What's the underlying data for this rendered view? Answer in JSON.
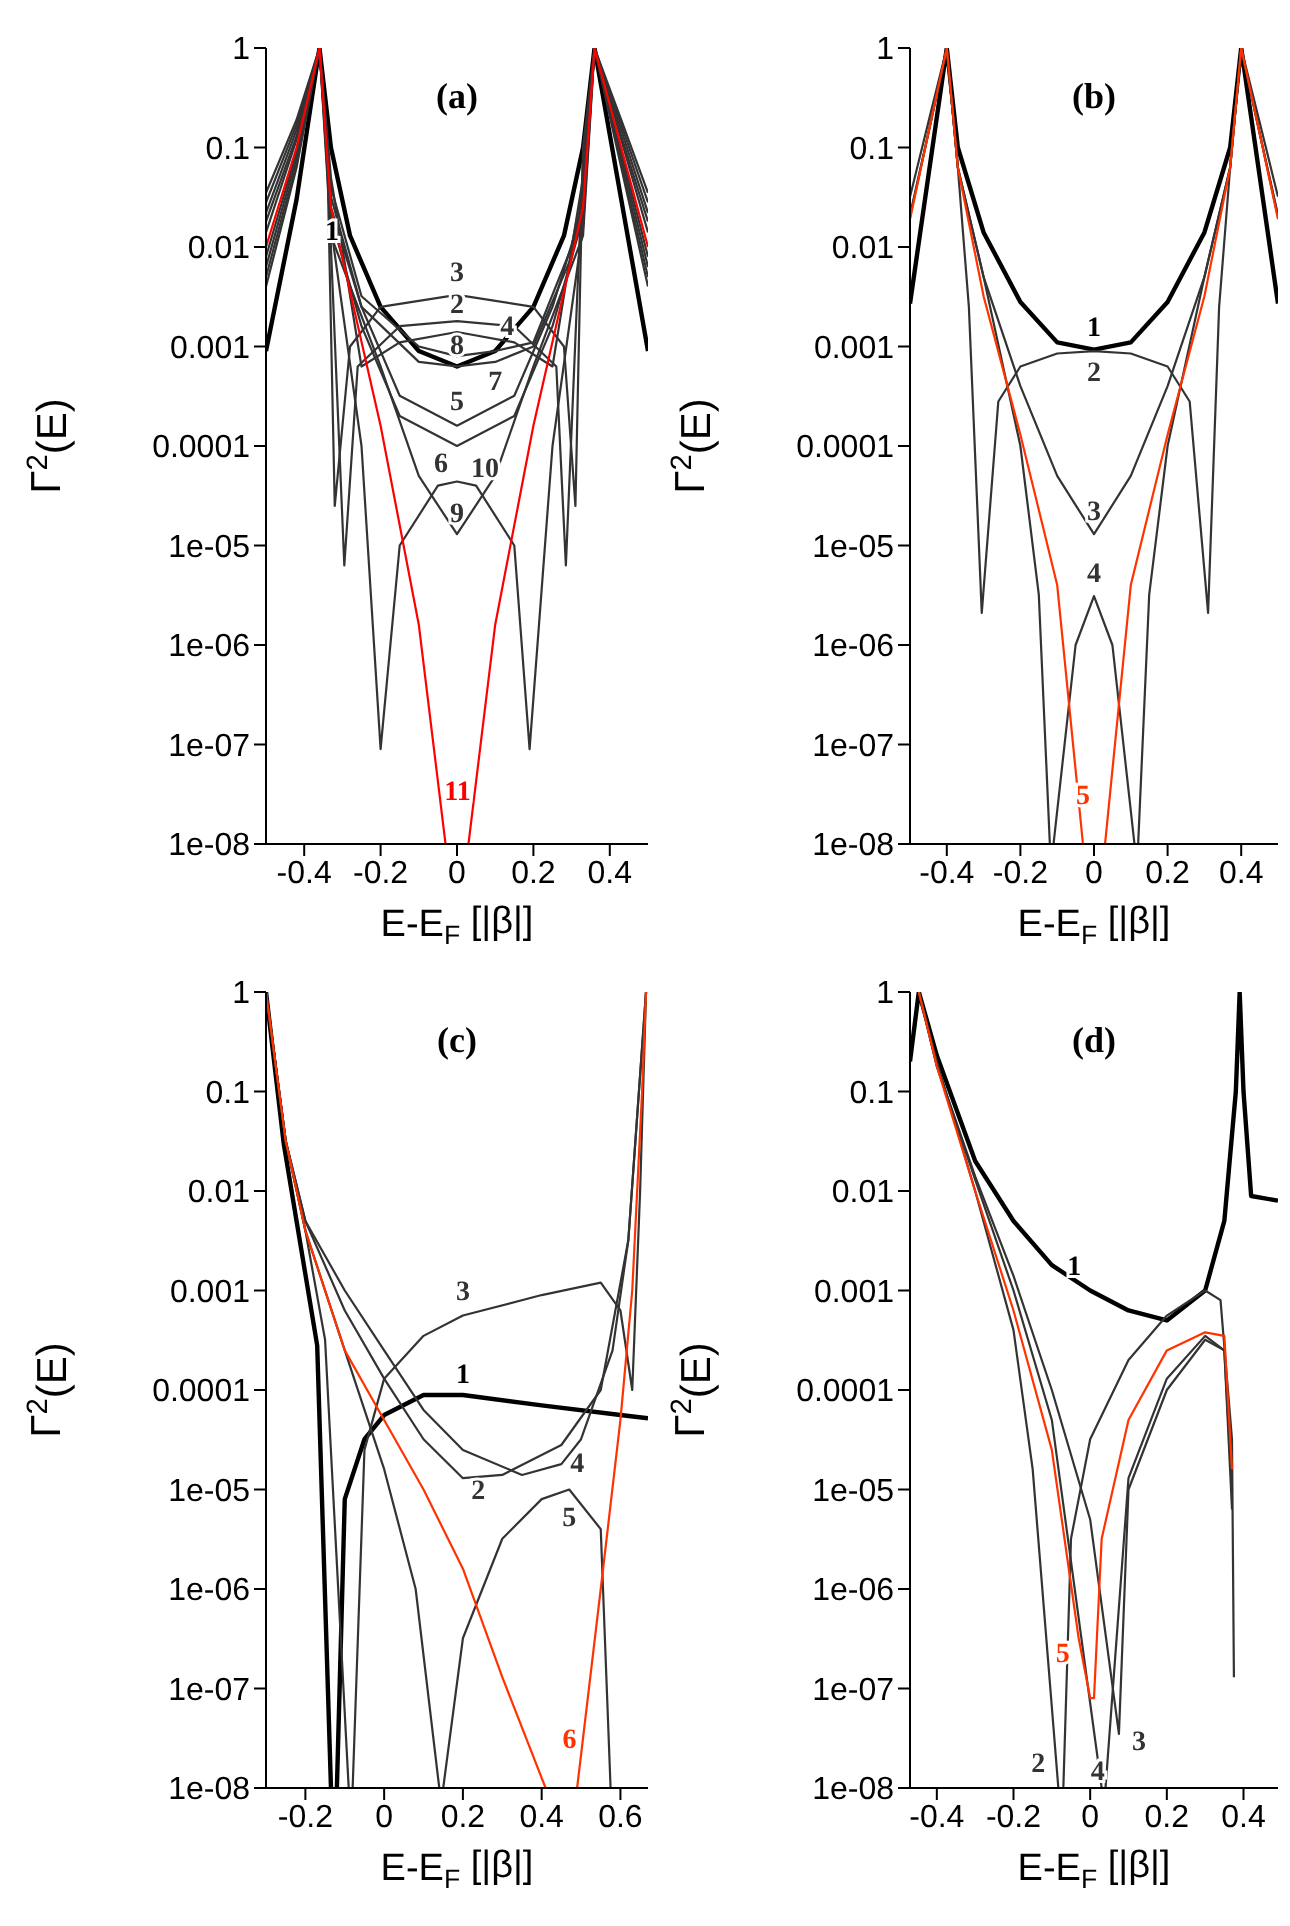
{
  "chart_data": [
    {
      "type": "line",
      "title": "(a)",
      "xlabel": "E-E$_{F}$ [|β|]",
      "ylabel": "Γ$^{2}$(E)",
      "log": "y",
      "xlim": [
        -0.5,
        0.5
      ],
      "xticks": [
        -0.4,
        -0.2,
        0,
        0.2,
        0.4
      ],
      "ylim": [
        1e-08,
        1
      ],
      "yticks": [
        1,
        0.1,
        0.01,
        0.001,
        0.0001,
        {
          "value": 1e-05,
          "label": "1e-05"
        },
        {
          "value": 1e-06,
          "label": "1e-06"
        },
        {
          "value": 1e-07,
          "label": "1e-07"
        },
        {
          "value": 1e-08,
          "label": "1e-08"
        }
      ],
      "series": [
        {
          "name": "1",
          "color": "#000000",
          "x": [
            -0.5,
            -0.42,
            -0.36,
            -0.33,
            -0.28,
            -0.2,
            -0.1,
            0,
            0.1,
            0.2,
            0.28,
            0.33,
            0.36,
            0.43,
            0.5
          ],
          "values": [
            0.0009,
            0.03,
            1,
            0.1,
            0.013,
            0.0025,
            0.0009,
            0.00063,
            0.0009,
            0.0025,
            0.013,
            0.1,
            1,
            0.03,
            0.0009
          ]
        },
        {
          "name": "2",
          "color": "#333333",
          "x": [
            -0.5,
            -0.42,
            -0.36,
            -0.34,
            -0.295,
            -0.26,
            -0.15,
            0,
            0.15,
            0.26,
            0.285,
            0.33,
            0.36,
            0.43,
            0.5
          ],
          "values": [
            0.028,
            0.17,
            1,
            0.08,
            6.3e-06,
            0.00063,
            0.0016,
            0.0018,
            0.0016,
            0.00063,
            6.3e-06,
            0.08,
            1,
            0.17,
            0.028
          ]
        },
        {
          "name": "3",
          "color": "#333333",
          "x": [
            -0.5,
            -0.42,
            -0.36,
            -0.34,
            -0.32,
            -0.28,
            -0.2,
            0,
            0.2,
            0.28,
            0.31,
            0.33,
            0.36,
            0.43,
            0.5
          ],
          "values": [
            0.035,
            0.19,
            1,
            0.1,
            2.5e-05,
            0.001,
            0.0025,
            0.0033,
            0.0025,
            0.001,
            2.5e-05,
            0.1,
            1,
            0.19,
            0.035
          ]
        },
        {
          "name": "4",
          "color": "#333333",
          "x": [
            -0.5,
            -0.42,
            -0.36,
            -0.33,
            -0.25,
            -0.1,
            0,
            0.1,
            0.2,
            0.3,
            0.33,
            0.36,
            0.43,
            0.5
          ],
          "values": [
            0.018,
            0.13,
            1,
            0.04,
            0.0032,
            0.001,
            0.0008,
            0.0009,
            0.0011,
            0.01,
            0.04,
            1,
            0.13,
            0.018
          ]
        },
        {
          "name": "5",
          "color": "#333333",
          "x": [
            -0.5,
            -0.42,
            -0.36,
            -0.33,
            -0.25,
            -0.15,
            0,
            0.15,
            0.25,
            0.33,
            0.36,
            0.43,
            0.5
          ],
          "values": [
            0.008,
            0.09,
            1,
            0.025,
            0.0025,
            0.00032,
            0.00016,
            0.00032,
            0.0025,
            0.025,
            1,
            0.09,
            0.008
          ]
        },
        {
          "name": "6",
          "color": "#333333",
          "x": [
            -0.5,
            -0.42,
            -0.36,
            -0.33,
            -0.25,
            -0.15,
            0,
            0.15,
            0.25,
            0.33,
            0.36,
            0.43,
            0.5
          ],
          "values": [
            0.0063,
            0.08,
            1,
            0.02,
            0.0016,
            0.0002,
            0.0001,
            0.0002,
            0.0016,
            0.02,
            1,
            0.08,
            0.0063
          ]
        },
        {
          "name": "7",
          "color": "#333333",
          "x": [
            -0.5,
            -0.42,
            -0.36,
            -0.33,
            -0.25,
            -0.1,
            0,
            0.1,
            0.2,
            0.3,
            0.33,
            0.36,
            0.43,
            0.5
          ],
          "values": [
            0.014,
            0.12,
            1,
            0.032,
            0.0025,
            0.0007,
            0.00063,
            0.0007,
            0.001,
            0.008,
            0.032,
            1,
            0.12,
            0.014
          ]
        },
        {
          "name": "8",
          "color": "#333333",
          "x": [
            -0.5,
            -0.42,
            -0.36,
            -0.33,
            -0.25,
            -0.15,
            0,
            0.15,
            0.25,
            0.33,
            0.36,
            0.43,
            0.5
          ],
          "values": [
            0.022,
            0.15,
            1,
            0.05,
            0.00063,
            0.0011,
            0.0014,
            0.0011,
            0.00063,
            0.05,
            1,
            0.15,
            0.022
          ]
        },
        {
          "name": "9",
          "color": "#333333",
          "x": [
            -0.5,
            -0.42,
            -0.36,
            -0.33,
            -0.2,
            -0.1,
            0,
            0.1,
            0.2,
            0.33,
            0.36,
            0.43,
            0.5
          ],
          "values": [
            0.004,
            0.063,
            1,
            0.013,
            0.00063,
            5e-05,
            1.3e-05,
            5e-05,
            0.00063,
            0.013,
            1,
            0.063,
            0.004
          ]
        },
        {
          "name": "10",
          "color": "#333333",
          "x": [
            -0.5,
            -0.42,
            -0.36,
            -0.33,
            -0.25,
            -0.2,
            -0.15,
            -0.05,
            0,
            0.05,
            0.15,
            0.19,
            0.25,
            0.33,
            0.36,
            0.43,
            0.5
          ],
          "values": [
            0.005,
            0.07,
            1,
            0.016,
            0.0001,
            9e-08,
            1e-05,
            4e-05,
            4.4e-05,
            4e-05,
            1e-05,
            9e-08,
            0.0001,
            0.016,
            1,
            0.07,
            0.005
          ]
        },
        {
          "name": "11",
          "color": "#ff0000",
          "x": [
            -0.5,
            -0.42,
            -0.36,
            -0.33,
            -0.2,
            -0.1,
            -0.03,
            0,
            0.03,
            0.1,
            0.2,
            0.33,
            0.36,
            0.43,
            0.5
          ],
          "values": [
            0.01,
            0.1,
            1,
            0.025,
            0.00016,
            1.6e-06,
            1e-08,
            null,
            1e-08,
            1.6e-06,
            0.00016,
            0.025,
            1,
            0.1,
            0.01
          ]
        }
      ]
    },
    {
      "type": "line",
      "title": "(b)",
      "xlabel": "E-E$_{F}$ [|β|]",
      "ylabel": "Γ$^{2}$(E)",
      "log": "y",
      "xlim": [
        -0.5,
        0.5
      ],
      "xticks": [
        -0.4,
        -0.2,
        0,
        0.2,
        0.4
      ],
      "ylim": [
        1e-08,
        1
      ],
      "yticks": [
        1,
        0.1,
        0.01,
        0.001,
        0.0001,
        {
          "value": 1e-05,
          "label": "1e-05"
        },
        {
          "value": 1e-06,
          "label": "1e-06"
        },
        {
          "value": 1e-07,
          "label": "1e-07"
        },
        {
          "value": 1e-08,
          "label": "1e-08"
        }
      ],
      "series": [
        {
          "name": "1",
          "color": "#000000",
          "x": [
            -0.5,
            -0.45,
            -0.4,
            -0.37,
            -0.3,
            -0.2,
            -0.1,
            0,
            0.1,
            0.2,
            0.3,
            0.37,
            0.4,
            0.45,
            0.5
          ],
          "values": [
            0.0027,
            0.052,
            1,
            0.1,
            0.014,
            0.0028,
            0.0011,
            0.00093,
            0.0011,
            0.0028,
            0.014,
            0.1,
            1,
            0.052,
            0.0027
          ]
        },
        {
          "name": "2",
          "color": "#333333",
          "x": [
            -0.5,
            -0.45,
            -0.4,
            -0.37,
            -0.34,
            -0.305,
            -0.26,
            -0.2,
            -0.1,
            0,
            0.1,
            0.2,
            0.26,
            0.31,
            0.34,
            0.37,
            0.4,
            0.45,
            0.5
          ],
          "values": [
            0.032,
            0.18,
            1,
            0.063,
            0.0025,
            2.1e-06,
            0.00028,
            0.00063,
            0.00085,
            0.0009,
            0.00085,
            0.00063,
            0.00028,
            2.1e-06,
            0.0025,
            0.063,
            1,
            0.18,
            0.032
          ]
        },
        {
          "name": "3",
          "color": "#333333",
          "x": [
            -0.5,
            -0.45,
            -0.4,
            -0.37,
            -0.3,
            -0.2,
            -0.1,
            0,
            0.1,
            0.2,
            0.3,
            0.37,
            0.4,
            0.45,
            0.5
          ],
          "values": [
            0.021,
            0.14,
            1,
            0.063,
            0.005,
            0.0004,
            5e-05,
            1.3e-05,
            5e-05,
            0.0004,
            0.005,
            0.063,
            1,
            0.14,
            0.021
          ]
        },
        {
          "name": "4",
          "color": "#333333",
          "x": [
            -0.5,
            -0.45,
            -0.4,
            -0.37,
            -0.3,
            -0.2,
            -0.15,
            -0.12,
            -0.115,
            -0.11,
            -0.05,
            0,
            0.05,
            0.11,
            0.115,
            0.12,
            0.15,
            0.2,
            0.3,
            0.37,
            0.4,
            0.45,
            0.5
          ],
          "values": [
            0.02,
            0.14,
            1,
            0.063,
            0.005,
            0.0001,
            3.2e-06,
            1e-08,
            null,
            1e-08,
            1e-06,
            3.1e-06,
            1e-06,
            1e-08,
            null,
            1e-08,
            3.2e-06,
            0.0001,
            0.005,
            0.063,
            1,
            0.14,
            0.02
          ]
        },
        {
          "name": "5",
          "color": "#ff3300",
          "x": [
            -0.5,
            -0.45,
            -0.4,
            -0.37,
            -0.3,
            -0.2,
            -0.1,
            -0.03,
            0,
            0.03,
            0.1,
            0.2,
            0.3,
            0.37,
            0.4,
            0.45,
            0.5
          ],
          "values": [
            0.019,
            0.14,
            1,
            0.063,
            0.0032,
            0.00013,
            4e-06,
            1e-08,
            null,
            1e-08,
            4e-06,
            0.00013,
            0.0032,
            0.063,
            1,
            0.14,
            0.019
          ]
        }
      ]
    },
    {
      "type": "line",
      "title": "(c)",
      "xlabel": "E-E$_{F}$ [|β|]",
      "ylabel": "Γ$^{2}$(E)",
      "log": "y",
      "xlim": [
        -0.3,
        0.67
      ],
      "xticks": [
        -0.2,
        0,
        0.2,
        0.4,
        0.6
      ],
      "ylim": [
        1e-08,
        1
      ],
      "yticks": [
        1,
        0.1,
        0.01,
        0.001,
        0.0001,
        {
          "value": 1e-05,
          "label": "1e-05"
        },
        {
          "value": 1e-06,
          "label": "1e-06"
        },
        {
          "value": 1e-07,
          "label": "1e-07"
        },
        {
          "value": 1e-08,
          "label": "1e-08"
        }
      ],
      "series": [
        {
          "name": "1",
          "color": "#000000",
          "x": [
            -0.3,
            -0.255,
            -0.17,
            -0.135,
            -0.13,
            -0.12,
            -0.1,
            -0.05,
            0,
            0.1,
            0.2,
            0.4,
            0.6,
            0.67
          ],
          "values": [
            1,
            0.03,
            0.00028,
            1e-08,
            null,
            1e-08,
            8e-06,
            3.2e-05,
            5.6e-05,
            8.9e-05,
            8.9e-05,
            7e-05,
            5.6e-05,
            5.2e-05
          ]
        },
        {
          "name": "2",
          "color": "#333333",
          "x": [
            -0.3,
            -0.25,
            -0.2,
            -0.1,
            0,
            0.1,
            0.2,
            0.3,
            0.45,
            0.55,
            0.62,
            0.665
          ],
          "values": [
            1,
            0.032,
            0.005,
            0.00063,
            0.00013,
            3.2e-05,
            1.3e-05,
            1.4e-05,
            2.8e-05,
            0.0001,
            0.0032,
            1
          ]
        },
        {
          "name": "3",
          "color": "#333333",
          "x": [
            -0.3,
            -0.25,
            -0.2,
            -0.15,
            -0.09,
            -0.085,
            -0.08,
            -0.05,
            0,
            0.1,
            0.2,
            0.4,
            0.55,
            0.6,
            0.63,
            0.65,
            0.665
          ],
          "values": [
            1,
            0.032,
            0.004,
            0.00032,
            1e-08,
            null,
            1e-08,
            2.5e-05,
            0.00013,
            0.00035,
            0.00056,
            0.0009,
            0.0012,
            0.00063,
            0.0001,
            0.01,
            1
          ]
        },
        {
          "name": "4",
          "color": "#333333",
          "x": [
            -0.3,
            -0.25,
            -0.2,
            -0.1,
            0,
            0.1,
            0.2,
            0.35,
            0.45,
            0.5,
            0.58,
            0.62,
            0.665
          ],
          "values": [
            1,
            0.032,
            0.005,
            0.001,
            0.00025,
            6.3e-05,
            2.5e-05,
            1.4e-05,
            1.8e-05,
            3.2e-05,
            0.00025,
            0.0032,
            1
          ]
        },
        {
          "name": "5",
          "color": "#333333",
          "x": [
            -0.3,
            -0.25,
            -0.2,
            -0.1,
            0,
            0.08,
            0.14,
            0.145,
            0.15,
            0.2,
            0.3,
            0.4,
            0.47,
            0.55,
            0.575
          ],
          "values": [
            1,
            0.032,
            0.004,
            0.00025,
            1.6e-05,
            1e-06,
            1e-08,
            null,
            1e-08,
            3.2e-07,
            3.2e-06,
            8e-06,
            1e-05,
            4e-06,
            1e-08
          ]
        },
        {
          "name": "6",
          "color": "#ff3300",
          "x": [
            -0.3,
            -0.25,
            -0.2,
            -0.1,
            0,
            0.1,
            0.2,
            0.3,
            0.41,
            0.45,
            0.49,
            0.55,
            0.6,
            0.63,
            0.655,
            0.665
          ],
          "values": [
            1,
            0.032,
            0.004,
            0.00025,
            5e-05,
            1e-05,
            1.6e-06,
            1.3e-07,
            1e-08,
            null,
            1e-08,
            1e-06,
            5e-05,
            0.001,
            0.1,
            1
          ]
        }
      ]
    },
    {
      "type": "line",
      "title": "(d)",
      "xlabel": "E-E$_{F}$ [|β|]",
      "ylabel": "Γ$^{2}$(E)",
      "log": "y",
      "xlim": [
        -0.47,
        0.49
      ],
      "xticks": [
        -0.4,
        -0.2,
        0,
        0.2,
        0.4
      ],
      "ylim": [
        1e-08,
        1
      ],
      "yticks": [
        1,
        0.1,
        0.01,
        0.001,
        0.0001,
        {
          "value": 1e-05,
          "label": "1e-05"
        },
        {
          "value": 1e-06,
          "label": "1e-06"
        },
        {
          "value": 1e-07,
          "label": "1e-07"
        },
        {
          "value": 1e-08,
          "label": "1e-08"
        }
      ],
      "series": [
        {
          "name": "1",
          "color": "#000000",
          "x": [
            -0.47,
            -0.447,
            -0.4,
            -0.3,
            -0.2,
            -0.1,
            0,
            0.1,
            0.2,
            0.3,
            0.35,
            0.38,
            0.39,
            0.4,
            0.42,
            0.49
          ],
          "values": [
            0.2,
            1,
            0.23,
            0.02,
            0.005,
            0.0018,
            0.001,
            0.00063,
            0.0005,
            0.001,
            0.005,
            0.1,
            1,
            0.1,
            0.0089,
            0.008
          ]
        },
        {
          "name": "2",
          "color": "#333333",
          "x": [
            -0.447,
            -0.4,
            -0.3,
            -0.2,
            -0.15,
            -0.083,
            -0.076,
            -0.07,
            -0.05,
            0,
            0.1,
            0.2,
            0.3,
            0.34,
            0.37,
            0.375
          ],
          "values": [
            1,
            0.2,
            0.01,
            0.0004,
            1.6e-05,
            1e-08,
            null,
            1e-08,
            3.2e-06,
            3.2e-05,
            0.0002,
            0.00056,
            0.001,
            0.0008,
            3.2e-05,
            1.3e-07
          ]
        },
        {
          "name": "3",
          "color": "#333333",
          "x": [
            -0.447,
            -0.4,
            -0.3,
            -0.2,
            -0.1,
            0,
            0.075,
            0.1,
            0.2,
            0.3,
            0.35,
            0.37
          ],
          "values": [
            1,
            0.18,
            0.014,
            0.0014,
            0.0001,
            5e-06,
            3.5e-08,
            1e-05,
            0.0001,
            0.00032,
            0.00025,
            1e-05
          ]
        },
        {
          "name": "4",
          "color": "#333333",
          "x": [
            -0.447,
            -0.4,
            -0.3,
            -0.2,
            -0.1,
            0.03,
            0.035,
            0.04,
            0.1,
            0.2,
            0.3,
            0.35,
            0.37
          ],
          "values": [
            1,
            0.18,
            0.013,
            0.001,
            5e-05,
            1e-08,
            null,
            1e-08,
            1.3e-05,
            0.00013,
            0.00035,
            0.00025,
            6.3e-06
          ]
        },
        {
          "name": "5",
          "color": "#ff3300",
          "x": [
            -0.447,
            -0.4,
            -0.3,
            -0.2,
            -0.1,
            -0.03,
            0,
            0.01,
            0.03,
            0.1,
            0.2,
            0.3,
            0.35,
            0.37
          ],
          "values": [
            1,
            0.18,
            0.01,
            0.00063,
            2.5e-05,
            3.2e-07,
            8e-08,
            8e-08,
            3.2e-06,
            5e-05,
            0.00025,
            0.00038,
            0.00035,
            1.6e-05
          ]
        }
      ]
    }
  ]
}
